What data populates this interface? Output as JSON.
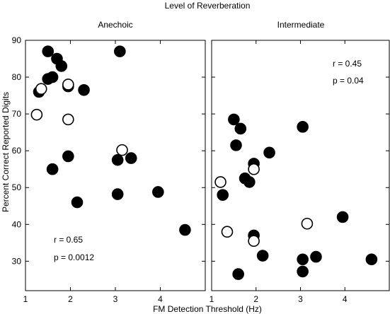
{
  "chart_data": {
    "type": "scatter",
    "suptitle": "Level of Reverberation",
    "xlabel": "FM Detection Threshold (Hz)",
    "ylabel": "Percent Correct Reported Digits",
    "ylim": [
      22,
      90
    ],
    "yticks": [
      "30",
      "40",
      "50",
      "60",
      "70",
      "80",
      "90"
    ],
    "series_styles": {
      "filled": {
        "fill": "#000000",
        "stroke": "#000000"
      },
      "open": {
        "fill": "#ffffff",
        "stroke": "#000000"
      }
    },
    "panels": [
      {
        "title": "Anechoic",
        "xlim": [
          1,
          5
        ],
        "xticks": [
          "1",
          "2",
          "3",
          "4"
        ],
        "stats": {
          "r": "r = 0.65",
          "p": "p = 0.0012"
        },
        "series": [
          {
            "style": "filled",
            "points": [
              [
                1.3,
                76
              ],
              [
                1.5,
                87
              ],
              [
                1.5,
                79.5
              ],
              [
                1.6,
                80
              ],
              [
                1.7,
                85
              ],
              [
                1.8,
                83
              ],
              [
                1.95,
                77.5
              ],
              [
                2.3,
                76.5
              ],
              [
                3.1,
                87
              ],
              [
                1.6,
                55
              ],
              [
                1.95,
                58.5
              ],
              [
                2.15,
                46
              ],
              [
                3.05,
                57.5
              ],
              [
                3.35,
                58
              ],
              [
                3.05,
                48.2
              ],
              [
                3.95,
                48.8
              ],
              [
                4.55,
                38.5
              ]
            ]
          },
          {
            "style": "open",
            "points": [
              [
                1.25,
                69.8
              ],
              [
                1.35,
                76.8
              ],
              [
                1.95,
                68.5
              ],
              [
                1.95,
                78
              ],
              [
                3.15,
                60.2
              ]
            ]
          }
        ]
      },
      {
        "title": "Intermediate",
        "xlim": [
          1,
          5
        ],
        "xticks": [
          "1",
          "2",
          "3",
          "4"
        ],
        "stats": {
          "r": "r = 0.45",
          "p": "p = 0.04"
        },
        "series": [
          {
            "style": "filled",
            "points": [
              [
                1.25,
                48
              ],
              [
                1.5,
                68.5
              ],
              [
                1.55,
                61.5
              ],
              [
                1.65,
                66
              ],
              [
                1.75,
                52.5
              ],
              [
                1.85,
                51.5
              ],
              [
                1.95,
                56.5
              ],
              [
                1.95,
                37
              ],
              [
                2.3,
                59.5
              ],
              [
                2.15,
                31.5
              ],
              [
                1.6,
                26.5
              ],
              [
                3.05,
                66.5
              ],
              [
                3.05,
                30.5
              ],
              [
                3.05,
                27.2
              ],
              [
                3.35,
                31.2
              ],
              [
                3.95,
                42
              ],
              [
                4.6,
                30.5
              ]
            ]
          },
          {
            "style": "open",
            "points": [
              [
                1.2,
                51.5
              ],
              [
                1.35,
                38
              ],
              [
                1.95,
                55
              ],
              [
                1.95,
                35.5
              ],
              [
                3.15,
                40.2
              ]
            ]
          }
        ]
      }
    ]
  }
}
